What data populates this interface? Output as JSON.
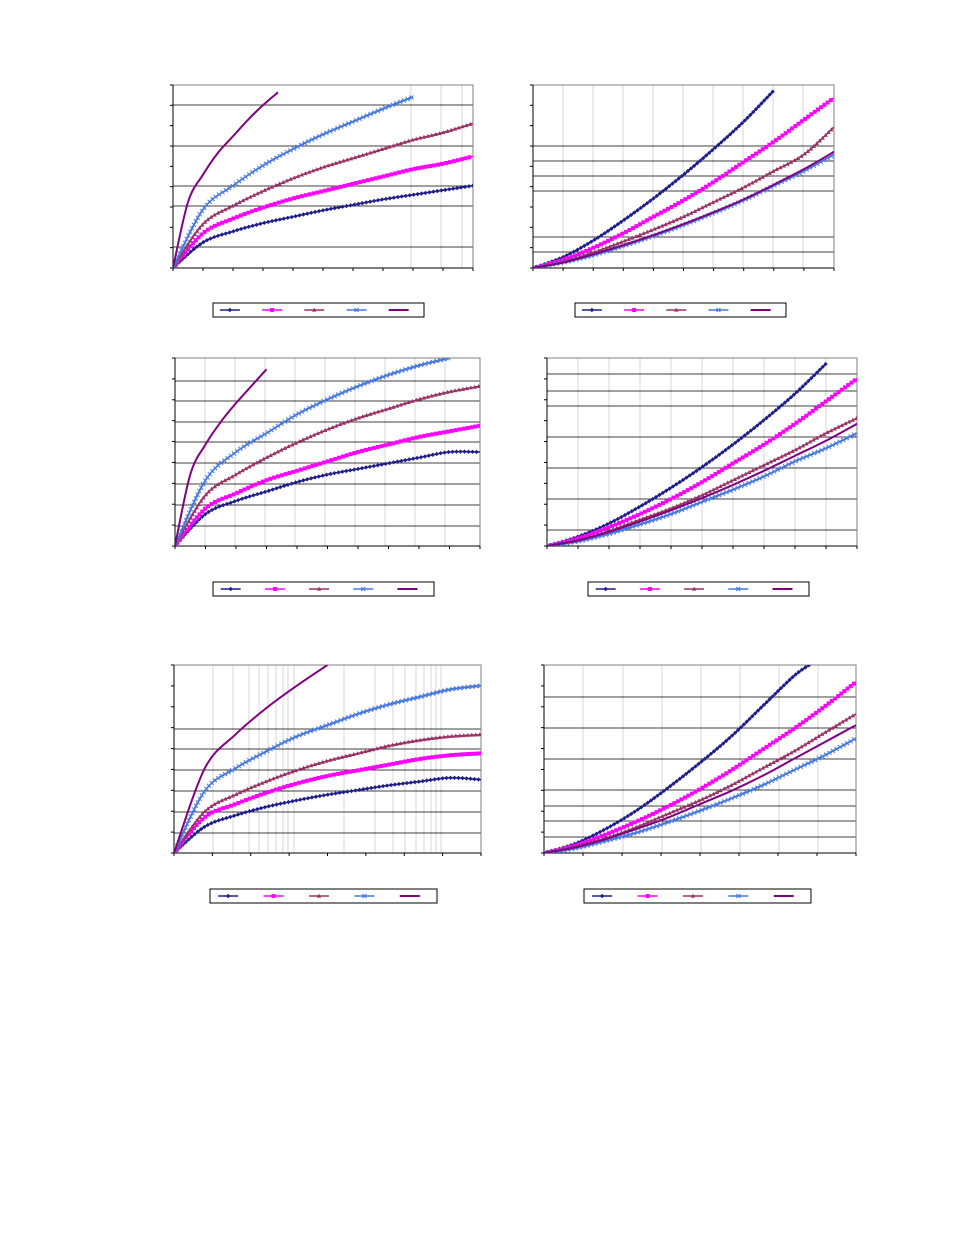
{
  "page": {
    "background": "#ffffff"
  },
  "chart_data": [
    {
      "id": "top-left",
      "type": "line",
      "grid": true,
      "legend_placement": "bottom",
      "x_scale": "linear",
      "xlim": [
        0,
        1
      ],
      "ylim": [
        0,
        1
      ],
      "series": [
        {
          "values_x": [
            0,
            0.1,
            0.2,
            0.3,
            0.4,
            0.5,
            0.6,
            0.7,
            0.8,
            0.9,
            1.0
          ],
          "values_y": [
            0,
            0.14,
            0.2,
            0.245,
            0.28,
            0.315,
            0.345,
            0.375,
            0.4,
            0.425,
            0.45
          ],
          "color": "#1f1f8a",
          "marker": "diamond"
        },
        {
          "values_x": [
            0,
            0.1,
            0.2,
            0.3,
            0.4,
            0.5,
            0.6,
            0.7,
            0.8,
            0.9,
            1.0
          ],
          "values_y": [
            0,
            0.19,
            0.27,
            0.33,
            0.38,
            0.42,
            0.46,
            0.5,
            0.54,
            0.57,
            0.61
          ],
          "color": "#ff00ff",
          "marker": "square"
        },
        {
          "values_x": [
            0,
            0.1,
            0.2,
            0.3,
            0.4,
            0.5,
            0.6,
            0.7,
            0.8,
            0.9,
            1.0
          ],
          "values_y": [
            0,
            0.24,
            0.34,
            0.42,
            0.49,
            0.55,
            0.6,
            0.65,
            0.7,
            0.74,
            0.79
          ],
          "color": "#993366",
          "marker": "triangle"
        },
        {
          "values_x": [
            0,
            0.1,
            0.2,
            0.3,
            0.4,
            0.5,
            0.6,
            0.7,
            0.8
          ],
          "values_y": [
            0,
            0.32,
            0.45,
            0.56,
            0.65,
            0.73,
            0.8,
            0.87,
            0.935
          ],
          "color": "#4477dd",
          "marker": "x"
        },
        {
          "values_x": [
            0,
            0.05,
            0.1,
            0.15,
            0.2,
            0.25,
            0.3,
            0.35
          ],
          "values_y": [
            0,
            0.36,
            0.51,
            0.63,
            0.72,
            0.81,
            0.89,
            0.96
          ],
          "color": "#800080",
          "marker": "none"
        }
      ]
    },
    {
      "id": "top-right",
      "type": "line",
      "grid": true,
      "legend_placement": "bottom",
      "x_scale": "linear",
      "xlim": [
        0,
        1
      ],
      "ylim": [
        0,
        1
      ],
      "series": [
        {
          "values_x": [
            0,
            0.1,
            0.2,
            0.3,
            0.4,
            0.5,
            0.6,
            0.7,
            0.8
          ],
          "values_y": [
            0,
            0.06,
            0.15,
            0.26,
            0.38,
            0.51,
            0.65,
            0.8,
            0.97
          ],
          "color": "#1f1f8a",
          "marker": "diamond"
        },
        {
          "values_x": [
            0,
            0.1,
            0.2,
            0.3,
            0.4,
            0.5,
            0.6,
            0.7,
            0.8,
            0.9,
            1.0
          ],
          "values_y": [
            0,
            0.045,
            0.11,
            0.19,
            0.28,
            0.37,
            0.47,
            0.58,
            0.69,
            0.81,
            0.93
          ],
          "color": "#ff00ff",
          "marker": "square"
        },
        {
          "values_x": [
            0,
            0.1,
            0.2,
            0.3,
            0.4,
            0.5,
            0.6,
            0.7,
            0.8,
            0.9,
            1.0
          ],
          "values_y": [
            0,
            0.035,
            0.085,
            0.145,
            0.21,
            0.28,
            0.36,
            0.44,
            0.53,
            0.62,
            0.77
          ],
          "color": "#993366",
          "marker": "triangle"
        },
        {
          "values_x": [
            0,
            0.1,
            0.2,
            0.3,
            0.4,
            0.5,
            0.6,
            0.7,
            0.8,
            0.9,
            1.0
          ],
          "values_y": [
            0,
            0.03,
            0.07,
            0.12,
            0.175,
            0.235,
            0.3,
            0.37,
            0.45,
            0.53,
            0.62
          ],
          "color": "#4477dd",
          "marker": "x"
        },
        {
          "values_x": [
            0,
            0.1,
            0.2,
            0.3,
            0.4,
            0.5,
            0.6,
            0.7,
            0.8,
            0.9,
            1.0
          ],
          "values_y": [
            0,
            0.03,
            0.075,
            0.125,
            0.18,
            0.24,
            0.305,
            0.375,
            0.455,
            0.54,
            0.635
          ],
          "color": "#800080",
          "marker": "none"
        }
      ]
    },
    {
      "id": "middle-left",
      "type": "line",
      "grid": true,
      "legend_placement": "bottom",
      "x_scale": "linear",
      "xlim": [
        0,
        1
      ],
      "ylim": [
        0,
        1
      ],
      "series": [
        {
          "values_x": [
            0,
            0.1,
            0.2,
            0.3,
            0.4,
            0.5,
            0.6,
            0.7,
            0.8,
            0.9,
            1.0
          ],
          "values_y": [
            0,
            0.17,
            0.24,
            0.29,
            0.34,
            0.38,
            0.41,
            0.44,
            0.47,
            0.5,
            0.5
          ],
          "color": "#1f1f8a",
          "marker": "diamond"
        },
        {
          "values_x": [
            0,
            0.1,
            0.2,
            0.3,
            0.4,
            0.5,
            0.6,
            0.7,
            0.8,
            0.9,
            1.0
          ],
          "values_y": [
            0,
            0.2,
            0.28,
            0.35,
            0.4,
            0.45,
            0.5,
            0.54,
            0.58,
            0.61,
            0.64
          ],
          "color": "#ff00ff",
          "marker": "square"
        },
        {
          "values_x": [
            0,
            0.1,
            0.2,
            0.3,
            0.4,
            0.5,
            0.6,
            0.7,
            0.8,
            0.9,
            1.0
          ],
          "values_y": [
            0,
            0.27,
            0.38,
            0.47,
            0.55,
            0.62,
            0.68,
            0.73,
            0.78,
            0.82,
            0.85
          ],
          "color": "#993366",
          "marker": "triangle"
        },
        {
          "values_x": [
            0,
            0.1,
            0.2,
            0.3,
            0.4,
            0.5,
            0.6,
            0.7,
            0.8,
            0.9
          ],
          "values_y": [
            0,
            0.35,
            0.5,
            0.6,
            0.7,
            0.78,
            0.85,
            0.91,
            0.96,
            1.0
          ],
          "color": "#4477dd",
          "marker": "x"
        },
        {
          "values_x": [
            0,
            0.05,
            0.1,
            0.15,
            0.2,
            0.25,
            0.3
          ],
          "values_y": [
            0,
            0.38,
            0.54,
            0.66,
            0.76,
            0.85,
            0.94
          ],
          "color": "#800080",
          "marker": "none"
        }
      ]
    },
    {
      "id": "middle-right",
      "type": "line",
      "grid": true,
      "legend_placement": "bottom",
      "x_scale": "linear",
      "xlim": [
        0,
        1
      ],
      "ylim": [
        0,
        1
      ],
      "series": [
        {
          "values_x": [
            0,
            0.1,
            0.2,
            0.3,
            0.4,
            0.5,
            0.6,
            0.7,
            0.8,
            0.9
          ],
          "values_y": [
            0,
            0.05,
            0.12,
            0.21,
            0.31,
            0.42,
            0.54,
            0.67,
            0.81,
            0.97
          ],
          "color": "#1f1f8a",
          "marker": "diamond"
        },
        {
          "values_x": [
            0,
            0.1,
            0.2,
            0.3,
            0.4,
            0.5,
            0.6,
            0.7,
            0.8,
            0.9,
            1.0
          ],
          "values_y": [
            0,
            0.04,
            0.1,
            0.17,
            0.25,
            0.34,
            0.44,
            0.54,
            0.65,
            0.77,
            0.89
          ],
          "color": "#ff00ff",
          "marker": "square"
        },
        {
          "values_x": [
            0,
            0.1,
            0.2,
            0.3,
            0.4,
            0.5,
            0.6,
            0.7,
            0.8,
            0.9,
            1.0
          ],
          "values_y": [
            0,
            0.03,
            0.08,
            0.14,
            0.2,
            0.27,
            0.35,
            0.43,
            0.51,
            0.6,
            0.68
          ],
          "color": "#993366",
          "marker": "triangle"
        },
        {
          "values_x": [
            0,
            0.1,
            0.2,
            0.3,
            0.4,
            0.5,
            0.6,
            0.7,
            0.8,
            0.9,
            1.0
          ],
          "values_y": [
            0,
            0.025,
            0.065,
            0.115,
            0.17,
            0.235,
            0.3,
            0.37,
            0.45,
            0.52,
            0.6
          ],
          "color": "#4477dd",
          "marker": "x"
        },
        {
          "values_x": [
            0,
            0.1,
            0.2,
            0.3,
            0.4,
            0.5,
            0.6,
            0.7,
            0.8,
            0.9,
            1.0
          ],
          "values_y": [
            0,
            0.03,
            0.075,
            0.13,
            0.19,
            0.255,
            0.325,
            0.4,
            0.48,
            0.56,
            0.65
          ],
          "color": "#800080",
          "marker": "none"
        }
      ]
    },
    {
      "id": "bottom-left",
      "type": "line",
      "grid": true,
      "legend_placement": "bottom",
      "x_scale": "log",
      "xlim": [
        0,
        1
      ],
      "ylim": [
        0,
        1
      ],
      "series": [
        {
          "values_x": [
            0,
            0.1,
            0.2,
            0.3,
            0.4,
            0.5,
            0.6,
            0.7,
            0.8,
            0.9,
            1.0
          ],
          "values_y": [
            0,
            0.14,
            0.2,
            0.245,
            0.28,
            0.31,
            0.335,
            0.36,
            0.38,
            0.4,
            0.39
          ],
          "color": "#1f1f8a",
          "marker": "diamond"
        },
        {
          "values_x": [
            0,
            0.1,
            0.2,
            0.3,
            0.4,
            0.5,
            0.6,
            0.7,
            0.8,
            0.9,
            1.0
          ],
          "values_y": [
            0,
            0.19,
            0.26,
            0.32,
            0.37,
            0.41,
            0.44,
            0.47,
            0.5,
            0.52,
            0.53
          ],
          "color": "#ff00ff",
          "marker": "square"
        },
        {
          "values_x": [
            0,
            0.1,
            0.2,
            0.3,
            0.4,
            0.5,
            0.6,
            0.7,
            0.8,
            0.9,
            1.0
          ],
          "values_y": [
            0,
            0.22,
            0.31,
            0.38,
            0.44,
            0.49,
            0.53,
            0.57,
            0.6,
            0.62,
            0.63
          ],
          "color": "#993366",
          "marker": "triangle"
        },
        {
          "values_x": [
            0,
            0.1,
            0.2,
            0.3,
            0.4,
            0.5,
            0.6,
            0.7,
            0.8,
            0.9,
            1.0
          ],
          "values_y": [
            0,
            0.33,
            0.45,
            0.54,
            0.62,
            0.68,
            0.74,
            0.79,
            0.83,
            0.87,
            0.89
          ],
          "color": "#4477dd",
          "marker": "x"
        },
        {
          "values_x": [
            0,
            0.1,
            0.2,
            0.3,
            0.4,
            0.5
          ],
          "values_y": [
            0,
            0.45,
            0.63,
            0.77,
            0.89,
            1.0
          ],
          "color": "#800080",
          "marker": "none"
        }
      ]
    },
    {
      "id": "bottom-right",
      "type": "line",
      "grid": true,
      "legend_placement": "bottom",
      "x_scale": "linear",
      "xlim": [
        0,
        1
      ],
      "ylim": [
        0,
        1
      ],
      "series": [
        {
          "values_x": [
            0,
            0.1,
            0.2,
            0.3,
            0.4,
            0.5,
            0.6,
            0.7,
            0.8,
            0.85
          ],
          "values_y": [
            0,
            0.05,
            0.13,
            0.23,
            0.35,
            0.48,
            0.62,
            0.78,
            0.94,
            1.0
          ],
          "color": "#1f1f8a",
          "marker": "diamond"
        },
        {
          "values_x": [
            0,
            0.1,
            0.2,
            0.3,
            0.4,
            0.5,
            0.6,
            0.7,
            0.8,
            0.9,
            1.0
          ],
          "values_y": [
            0,
            0.04,
            0.1,
            0.17,
            0.25,
            0.34,
            0.44,
            0.55,
            0.66,
            0.78,
            0.91
          ],
          "color": "#ff00ff",
          "marker": "square"
        },
        {
          "values_x": [
            0,
            0.1,
            0.2,
            0.3,
            0.4,
            0.5,
            0.6,
            0.7,
            0.8,
            0.9,
            1.0
          ],
          "values_y": [
            0,
            0.035,
            0.08,
            0.14,
            0.21,
            0.28,
            0.36,
            0.45,
            0.54,
            0.64,
            0.74
          ],
          "color": "#993366",
          "marker": "triangle"
        },
        {
          "values_x": [
            0,
            0.1,
            0.2,
            0.3,
            0.4,
            0.5,
            0.6,
            0.7,
            0.8,
            0.9,
            1.0
          ],
          "values_y": [
            0,
            0.025,
            0.065,
            0.11,
            0.165,
            0.225,
            0.29,
            0.36,
            0.44,
            0.52,
            0.61
          ],
          "color": "#4477dd",
          "marker": "x"
        },
        {
          "values_x": [
            0,
            0.1,
            0.2,
            0.3,
            0.4,
            0.5,
            0.6,
            0.7,
            0.8,
            0.9,
            1.0
          ],
          "values_y": [
            0,
            0.03,
            0.075,
            0.13,
            0.19,
            0.26,
            0.33,
            0.41,
            0.5,
            0.59,
            0.68
          ],
          "color": "#800080",
          "marker": "none"
        }
      ]
    }
  ]
}
